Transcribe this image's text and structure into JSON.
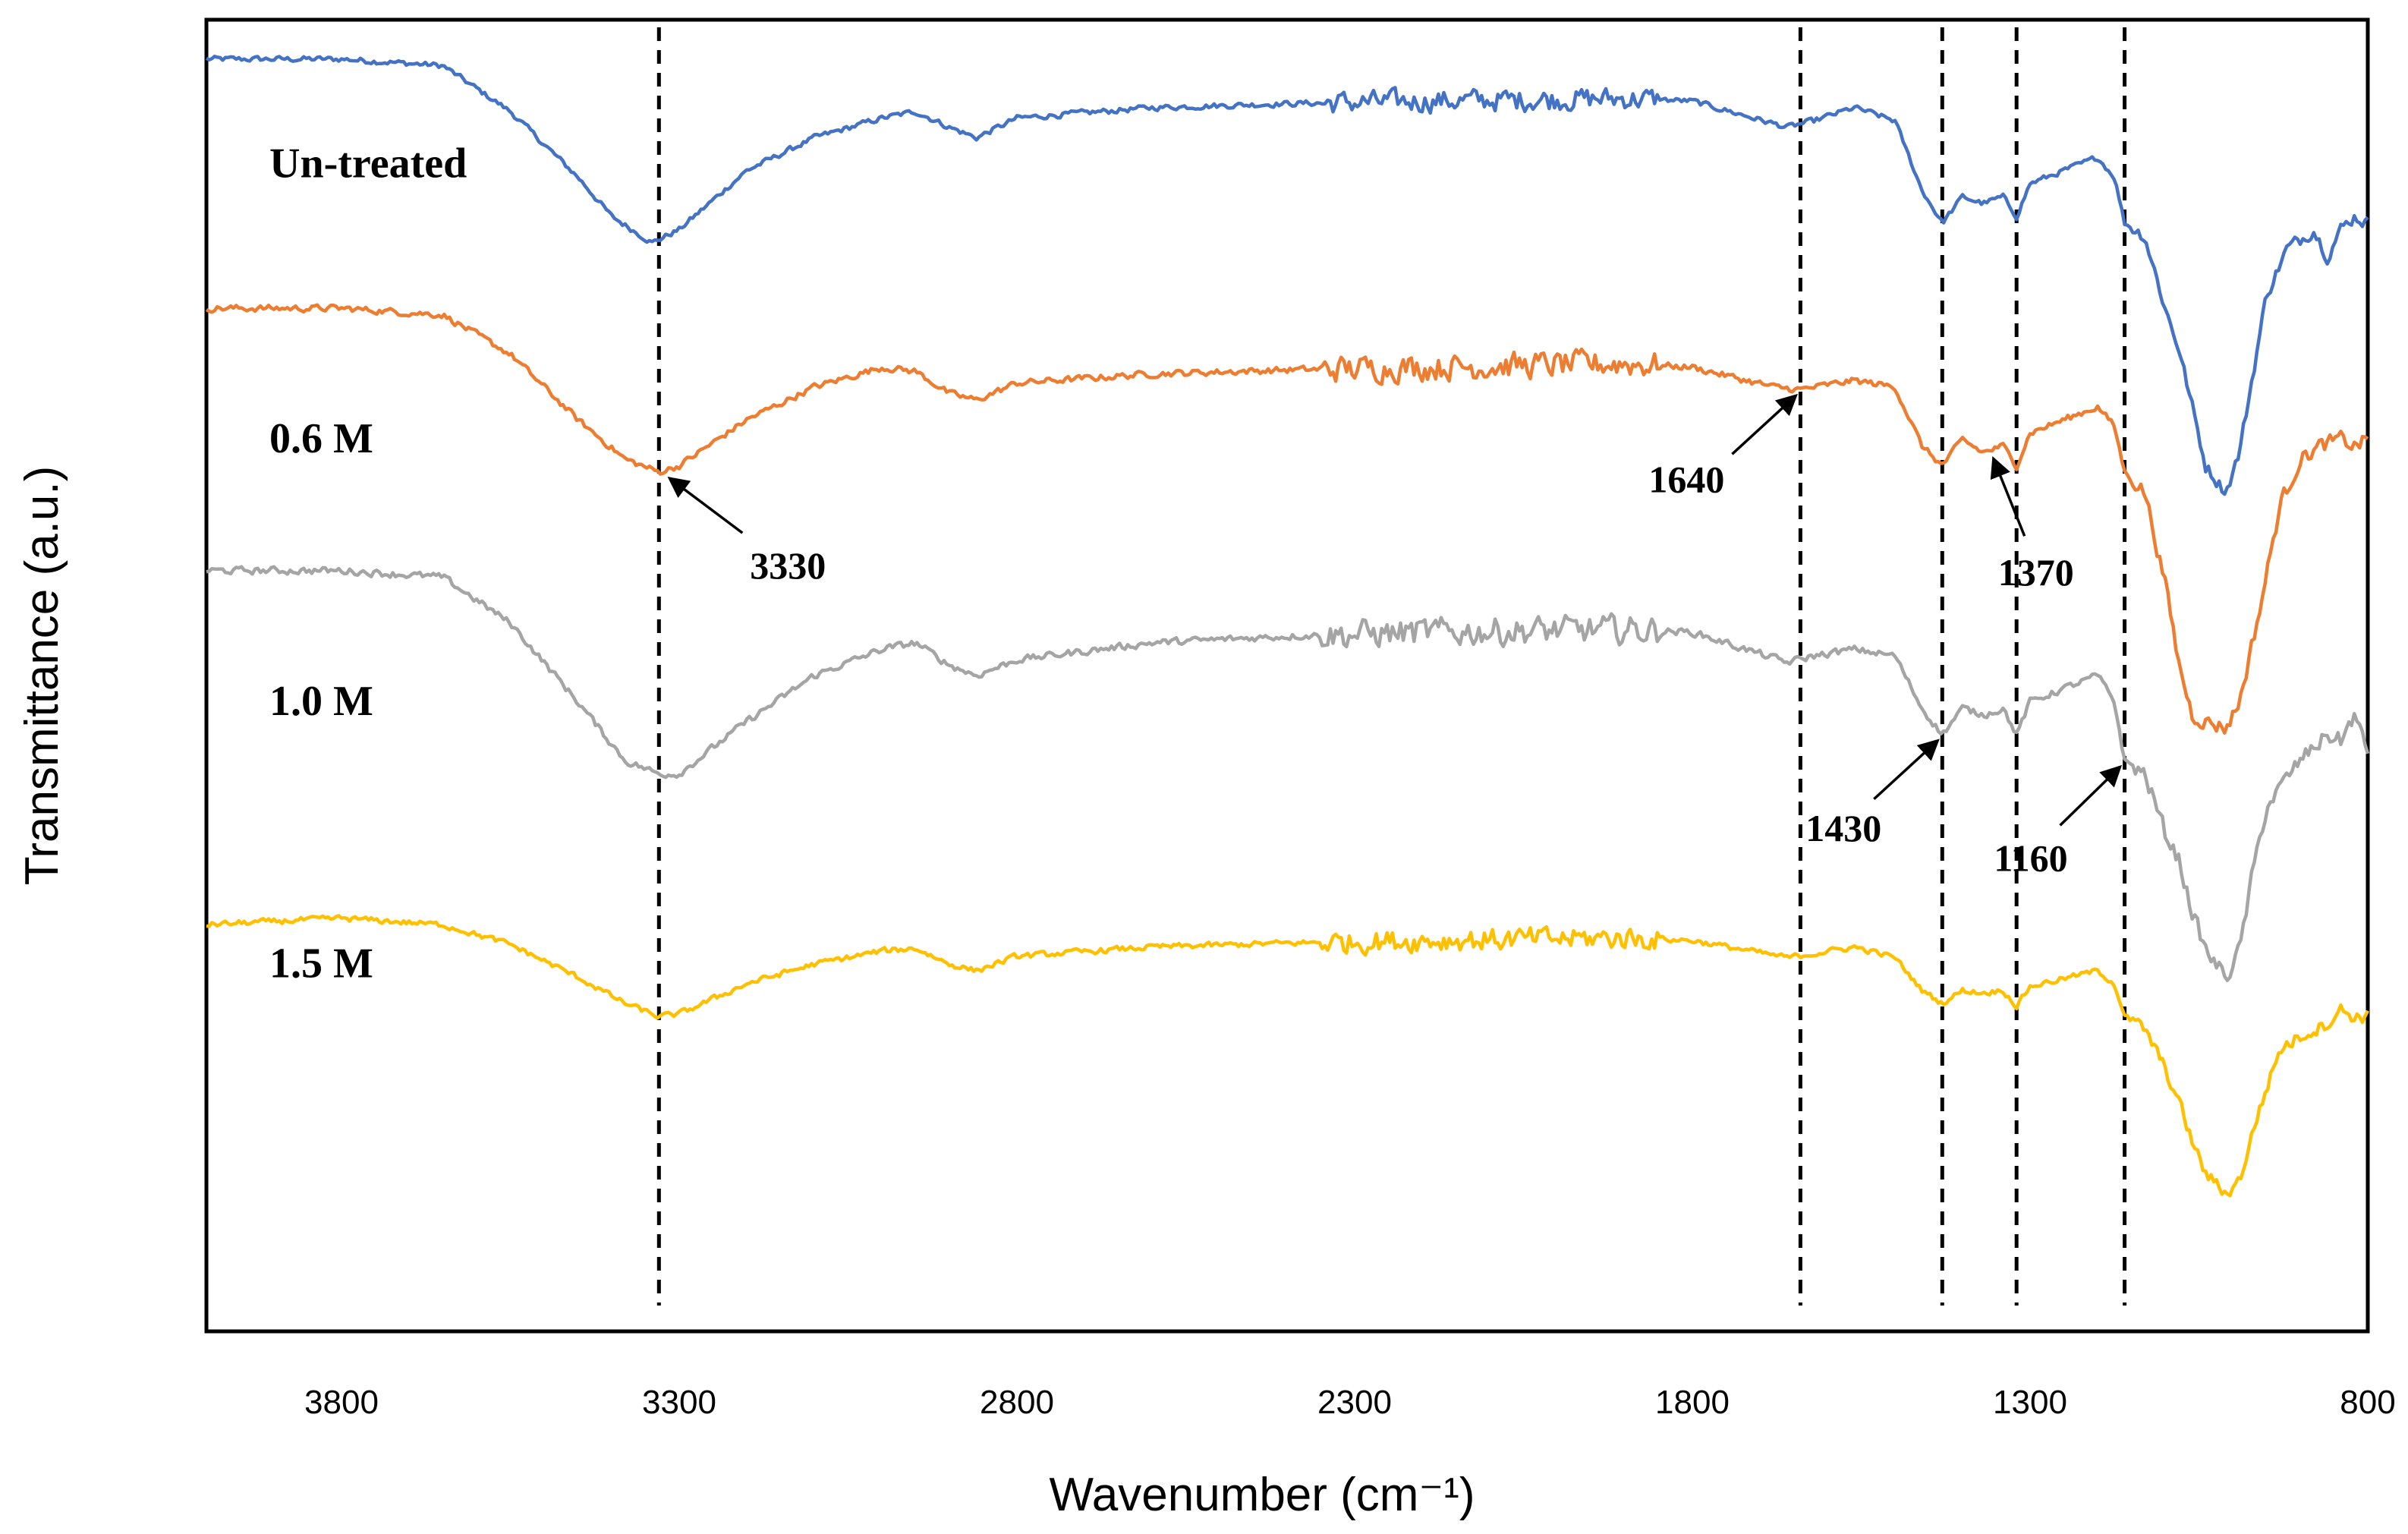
{
  "chart_data": {
    "type": "line",
    "title": "",
    "xlabel": "Wavenumber (cm⁻¹)",
    "ylabel": "Transmittance (a.u.)",
    "xlim": [
      4000,
      800
    ],
    "x_reversed": true,
    "ylim": [
      0,
      100
    ],
    "grid": false,
    "xticks": [
      3800,
      3300,
      2800,
      2300,
      1800,
      1300,
      800
    ],
    "xtick_labels": [
      "3800",
      "3300",
      "2800",
      "2300",
      "1800",
      "1300",
      "800"
    ],
    "reference_lines": [
      3330,
      1640,
      1430,
      1320,
      1160
    ],
    "series": [
      {
        "name": "Un-treated",
        "color": "#4472C4",
        "offset": 90,
        "noise": 1.2,
        "points": [
          [
            4000,
            97
          ],
          [
            3800,
            97
          ],
          [
            3650,
            96.5
          ],
          [
            3550,
            93
          ],
          [
            3450,
            88
          ],
          [
            3400,
            85
          ],
          [
            3340,
            83
          ],
          [
            3300,
            84
          ],
          [
            3200,
            88.5
          ],
          [
            3100,
            91
          ],
          [
            3000,
            92.5
          ],
          [
            2950,
            93
          ],
          [
            2900,
            91.8
          ],
          [
            2860,
            91
          ],
          [
            2800,
            92.5
          ],
          [
            2600,
            93.3
          ],
          [
            2400,
            93.6
          ],
          [
            2200,
            93.8
          ],
          [
            1900,
            94
          ],
          [
            1800,
            93.8
          ],
          [
            1660,
            91.8
          ],
          [
            1620,
            92.3
          ],
          [
            1560,
            93.3
          ],
          [
            1500,
            92.3
          ],
          [
            1460,
            87
          ],
          [
            1430,
            84.5
          ],
          [
            1400,
            86.5
          ],
          [
            1370,
            86
          ],
          [
            1340,
            86.5
          ],
          [
            1320,
            85
          ],
          [
            1300,
            87.5
          ],
          [
            1200,
            89.5
          ],
          [
            1175,
            88
          ],
          [
            1160,
            84.5
          ],
          [
            1130,
            83.5
          ],
          [
            1100,
            78
          ],
          [
            1080,
            75
          ],
          [
            1060,
            70.5
          ],
          [
            1040,
            66
          ],
          [
            1010,
            64
          ],
          [
            990,
            67
          ],
          [
            950,
            79
          ],
          [
            920,
            82.5
          ],
          [
            880,
            84
          ],
          [
            860,
            82
          ],
          [
            840,
            84
          ],
          [
            820,
            85
          ],
          [
            800,
            84.5
          ]
        ]
      },
      {
        "name": "0.6 M",
        "color": "#ED7D31",
        "offset": 70,
        "noise": 1.4,
        "points": [
          [
            4000,
            78
          ],
          [
            3800,
            78
          ],
          [
            3650,
            77.5
          ],
          [
            3550,
            74.5
          ],
          [
            3450,
            69.5
          ],
          [
            3380,
            66.5
          ],
          [
            3330,
            65.5
          ],
          [
            3300,
            66
          ],
          [
            3200,
            69.5
          ],
          [
            3100,
            72
          ],
          [
            3000,
            73.5
          ],
          [
            2950,
            73.2
          ],
          [
            2900,
            71.5
          ],
          [
            2860,
            71
          ],
          [
            2800,
            72.3
          ],
          [
            2600,
            73
          ],
          [
            2400,
            73.3
          ],
          [
            2200,
            73.5
          ],
          [
            1900,
            73.8
          ],
          [
            1800,
            73.5
          ],
          [
            1680,
            72
          ],
          [
            1640,
            71.8
          ],
          [
            1560,
            72.5
          ],
          [
            1500,
            72
          ],
          [
            1460,
            67.5
          ],
          [
            1430,
            66
          ],
          [
            1400,
            68
          ],
          [
            1370,
            67
          ],
          [
            1340,
            67.5
          ],
          [
            1320,
            66
          ],
          [
            1300,
            68.5
          ],
          [
            1200,
            70.5
          ],
          [
            1175,
            69
          ],
          [
            1160,
            65.5
          ],
          [
            1130,
            64
          ],
          [
            1100,
            57
          ],
          [
            1080,
            51
          ],
          [
            1060,
            47
          ],
          [
            1040,
            46.5
          ],
          [
            1010,
            46
          ],
          [
            990,
            48
          ],
          [
            960,
            55
          ],
          [
            930,
            63
          ],
          [
            900,
            66.5
          ],
          [
            870,
            67.5
          ],
          [
            840,
            68
          ],
          [
            820,
            67.5
          ],
          [
            800,
            68
          ]
        ]
      },
      {
        "name": "1.0 M",
        "color": "#A5A5A5",
        "offset": 50,
        "noise": 1.5,
        "points": [
          [
            4000,
            58
          ],
          [
            3800,
            58
          ],
          [
            3650,
            57.5
          ],
          [
            3550,
            54
          ],
          [
            3450,
            48
          ],
          [
            3380,
            43.5
          ],
          [
            3330,
            42.5
          ],
          [
            3300,
            42.5
          ],
          [
            3200,
            46.5
          ],
          [
            3100,
            50
          ],
          [
            3000,
            52
          ],
          [
            2950,
            52.5
          ],
          [
            2900,
            50.8
          ],
          [
            2860,
            50
          ],
          [
            2800,
            51.2
          ],
          [
            2600,
            52.5
          ],
          [
            2400,
            53
          ],
          [
            2200,
            53.3
          ],
          [
            1900,
            53.5
          ],
          [
            1800,
            53.3
          ],
          [
            1660,
            51
          ],
          [
            1620,
            51.5
          ],
          [
            1560,
            52
          ],
          [
            1500,
            51.5
          ],
          [
            1460,
            47.5
          ],
          [
            1430,
            45.5
          ],
          [
            1400,
            47.5
          ],
          [
            1370,
            47
          ],
          [
            1340,
            47.5
          ],
          [
            1320,
            45.5
          ],
          [
            1300,
            48
          ],
          [
            1200,
            50
          ],
          [
            1175,
            48
          ],
          [
            1160,
            43.5
          ],
          [
            1130,
            42.5
          ],
          [
            1100,
            38
          ],
          [
            1080,
            36
          ],
          [
            1060,
            32
          ],
          [
            1040,
            29
          ],
          [
            1010,
            27
          ],
          [
            990,
            29
          ],
          [
            970,
            35
          ],
          [
            950,
            40
          ],
          [
            900,
            43.5
          ],
          [
            860,
            45.5
          ],
          [
            840,
            45
          ],
          [
            820,
            47
          ],
          [
            800,
            44
          ]
        ]
      },
      {
        "name": "1.5 M",
        "color": "#FFC000",
        "offset": 30,
        "noise": 1.2,
        "points": [
          [
            4000,
            31
          ],
          [
            3800,
            31.5
          ],
          [
            3650,
            31
          ],
          [
            3550,
            29.5
          ],
          [
            3450,
            27
          ],
          [
            3380,
            25
          ],
          [
            3330,
            24
          ],
          [
            3300,
            24.2
          ],
          [
            3200,
            26.5
          ],
          [
            3100,
            28
          ],
          [
            3000,
            29
          ],
          [
            2950,
            29.2
          ],
          [
            2900,
            28
          ],
          [
            2860,
            27.5
          ],
          [
            2800,
            28.6
          ],
          [
            2600,
            29.3
          ],
          [
            2400,
            29.6
          ],
          [
            2200,
            29.8
          ],
          [
            1900,
            30
          ],
          [
            1800,
            29.8
          ],
          [
            1660,
            28.5
          ],
          [
            1620,
            28.8
          ],
          [
            1560,
            29.3
          ],
          [
            1500,
            28.5
          ],
          [
            1460,
            26
          ],
          [
            1430,
            25
          ],
          [
            1400,
            26
          ],
          [
            1370,
            25.8
          ],
          [
            1340,
            26
          ],
          [
            1320,
            24.8
          ],
          [
            1300,
            26.3
          ],
          [
            1200,
            27.5
          ],
          [
            1175,
            26.5
          ],
          [
            1160,
            24
          ],
          [
            1130,
            23
          ],
          [
            1100,
            20
          ],
          [
            1080,
            17.5
          ],
          [
            1060,
            14.5
          ],
          [
            1040,
            12
          ],
          [
            1010,
            10.5
          ],
          [
            990,
            11.5
          ],
          [
            960,
            17
          ],
          [
            930,
            21.5
          ],
          [
            900,
            22.5
          ],
          [
            860,
            23.5
          ],
          [
            840,
            24.5
          ],
          [
            820,
            24
          ],
          [
            800,
            24
          ]
        ]
      }
    ],
    "annotations": [
      {
        "label": "3330",
        "x": 3330,
        "series": "0.6 M"
      },
      {
        "label": "1640",
        "x": 1640,
        "series": "0.6 M"
      },
      {
        "label": "1370",
        "x": 1370,
        "series": "0.6 M"
      },
      {
        "label": "1430",
        "x": 1430,
        "series": "1.0 M"
      },
      {
        "label": "1160",
        "x": 1160,
        "series": "1.0 M"
      }
    ]
  }
}
